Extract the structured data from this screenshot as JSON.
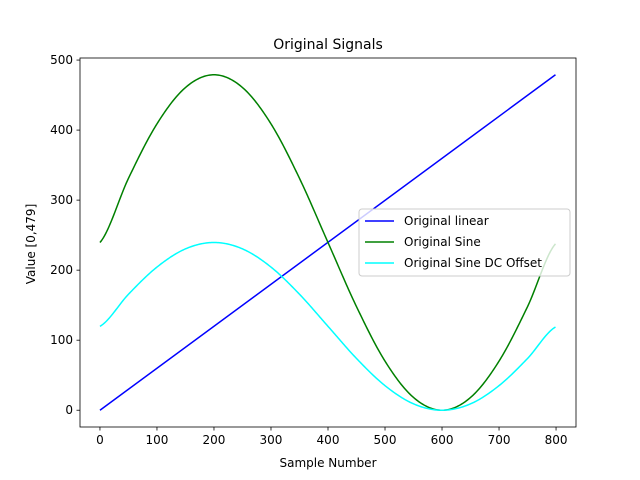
{
  "chart_data": {
    "type": "line",
    "title": "Original Signals",
    "xlabel": "Sample Number",
    "ylabel": "Value [0,479]",
    "xlim": [
      -35,
      835
    ],
    "ylim": [
      -23.95,
      502.95
    ],
    "xticks": [
      0,
      100,
      200,
      300,
      400,
      500,
      600,
      700,
      800
    ],
    "yticks": [
      0,
      100,
      200,
      300,
      400,
      500
    ],
    "x_start": 0,
    "x_end": 799,
    "series": [
      {
        "name": "Original linear",
        "color": "#0000ff",
        "x": [
          0,
          799
        ],
        "y": [
          0,
          479
        ]
      },
      {
        "name": "Original Sine",
        "color": "#008000",
        "x": [
          0,
          50,
          100,
          150,
          200,
          250,
          300,
          350,
          400,
          450,
          500,
          550,
          600,
          650,
          700,
          750,
          799
        ],
        "y": [
          239.5,
          331.1,
          408.9,
          460.8,
          479.0,
          460.8,
          408.9,
          331.1,
          239.5,
          147.9,
          70.1,
          18.2,
          0.0,
          18.2,
          70.1,
          147.9,
          237.6
        ]
      },
      {
        "name": "Original Sine DC Offset",
        "color": "#00ffff",
        "x": [
          0,
          50,
          100,
          150,
          200,
          250,
          300,
          350,
          400,
          450,
          500,
          550,
          600,
          650,
          700,
          750,
          799
        ],
        "y": [
          119.8,
          165.6,
          204.4,
          230.4,
          239.5,
          230.4,
          204.4,
          165.6,
          119.8,
          73.9,
          35.1,
          9.1,
          0.0,
          9.1,
          35.1,
          73.9,
          118.8
        ]
      }
    ],
    "legend_position": "center-right",
    "grid": false
  }
}
